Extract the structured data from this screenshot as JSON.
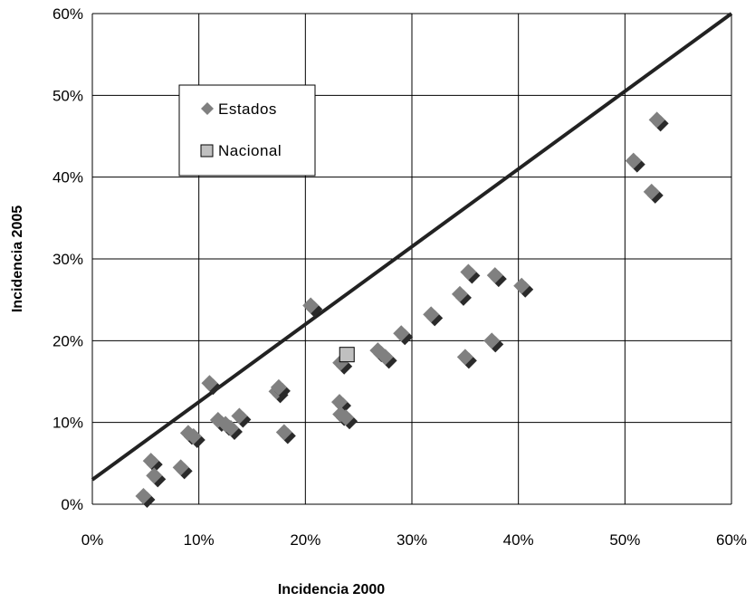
{
  "chart_data": {
    "type": "scatter",
    "xlabel": "Incidencia 2000",
    "ylabel": "Incidencia 2005",
    "xlim": [
      0,
      60
    ],
    "ylim": [
      0,
      60
    ],
    "x_ticks": [
      "0%",
      "10%",
      "20%",
      "30%",
      "40%",
      "50%",
      "60%"
    ],
    "y_ticks": [
      "0%",
      "10%",
      "20%",
      "30%",
      "40%",
      "50%",
      "60%"
    ],
    "grid": true,
    "legend_position": "upper-left-inside",
    "series": [
      {
        "name": "Estados",
        "marker": "diamond",
        "color": "#808080",
        "shadow_color": "#2a2a2a",
        "points": [
          {
            "x": 4.8,
            "y": 1.0
          },
          {
            "x": 5.5,
            "y": 5.3
          },
          {
            "x": 5.8,
            "y": 3.5
          },
          {
            "x": 8.3,
            "y": 4.5
          },
          {
            "x": 9.0,
            "y": 8.7
          },
          {
            "x": 9.5,
            "y": 8.3
          },
          {
            "x": 11.0,
            "y": 14.8
          },
          {
            "x": 11.8,
            "y": 10.3
          },
          {
            "x": 12.5,
            "y": 9.8
          },
          {
            "x": 13.0,
            "y": 9.3
          },
          {
            "x": 13.8,
            "y": 10.8
          },
          {
            "x": 17.3,
            "y": 13.8
          },
          {
            "x": 17.5,
            "y": 14.3
          },
          {
            "x": 18.0,
            "y": 8.8
          },
          {
            "x": 20.5,
            "y": 24.3
          },
          {
            "x": 23.2,
            "y": 12.5
          },
          {
            "x": 23.3,
            "y": 17.3
          },
          {
            "x": 23.3,
            "y": 11.0
          },
          {
            "x": 23.8,
            "y": 10.6
          },
          {
            "x": 26.8,
            "y": 18.8
          },
          {
            "x": 27.5,
            "y": 18.0
          },
          {
            "x": 29.0,
            "y": 20.9
          },
          {
            "x": 31.8,
            "y": 23.2
          },
          {
            "x": 34.5,
            "y": 25.7
          },
          {
            "x": 35.0,
            "y": 18.0
          },
          {
            "x": 35.3,
            "y": 28.4
          },
          {
            "x": 37.5,
            "y": 20.0
          },
          {
            "x": 37.8,
            "y": 28.0
          },
          {
            "x": 40.3,
            "y": 26.7
          },
          {
            "x": 50.8,
            "y": 42.0
          },
          {
            "x": 52.5,
            "y": 38.2
          },
          {
            "x": 53.0,
            "y": 47.0
          }
        ]
      },
      {
        "name": "Nacional",
        "marker": "square",
        "color": "#c0c0c0",
        "points": [
          {
            "x": 23.9,
            "y": 18.3
          }
        ]
      }
    ],
    "reference_line": {
      "x": [
        0,
        60
      ],
      "y": [
        3,
        60
      ],
      "color": "#222222"
    }
  }
}
